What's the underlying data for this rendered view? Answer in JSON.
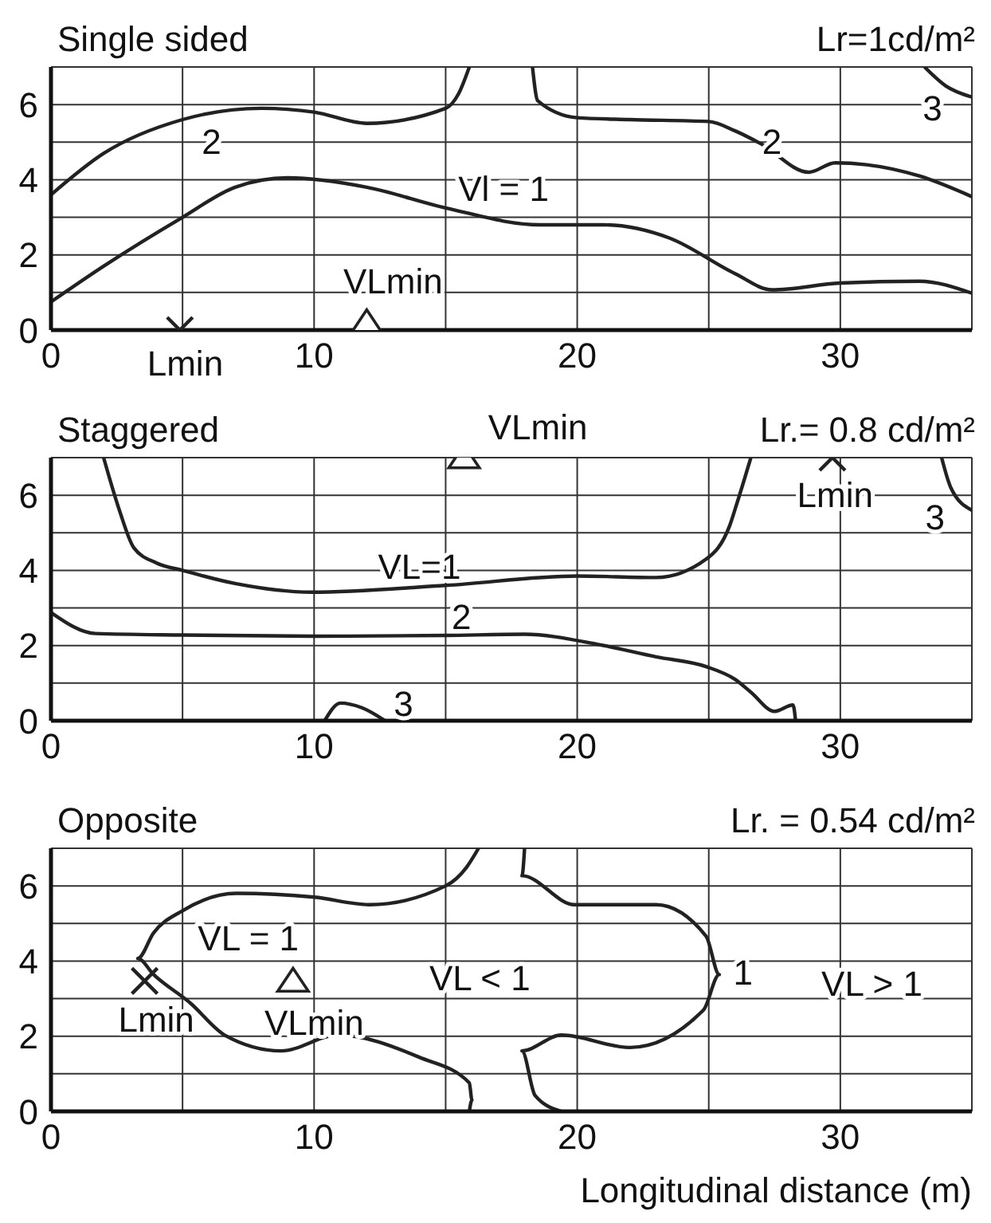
{
  "chart_data": [
    {
      "type": "line",
      "title": "Single sided",
      "subtitle": "Lr=1cd/m²",
      "xlim": [
        0,
        35
      ],
      "ylim": [
        0,
        7
      ],
      "xticks": [
        0,
        {
          "value": 5,
          "label": null
        },
        10,
        {
          "value": 15,
          "label": null
        },
        20,
        {
          "value": 25,
          "label": null
        },
        30,
        {
          "value": 35,
          "label": null
        }
      ],
      "yticks": [
        0,
        {
          "value": 1,
          "label": null
        },
        2,
        {
          "value": 3,
          "label": null
        },
        4,
        {
          "value": 5,
          "label": null
        },
        6,
        {
          "value": 7,
          "label": null
        }
      ],
      "grid": true,
      "marker": "none",
      "line_style": "solid",
      "series": [
        {
          "color": "#222222",
          "x": [
            0,
            2,
            5,
            8,
            10,
            12,
            15,
            15.5,
            15.9
          ],
          "values": [
            3.6,
            4.7,
            5.6,
            5.9,
            5.8,
            5.5,
            5.9,
            6.3,
            7
          ]
        },
        {
          "color": "#222222",
          "x": [
            18.3,
            18.5,
            20,
            22,
            25,
            26,
            27,
            28.8,
            29.8,
            31,
            33,
            35
          ],
          "values": [
            7,
            6.1,
            5.65,
            5.6,
            5.55,
            5.3,
            4.95,
            4.2,
            4.45,
            4.4,
            4.1,
            3.55
          ]
        },
        {
          "color": "#222222",
          "x": [
            33.2,
            34,
            35
          ],
          "values": [
            7,
            6.5,
            6.2
          ]
        },
        {
          "color": "#222222",
          "x": [
            0,
            2,
            5,
            7,
            9,
            12,
            15,
            18.6,
            21,
            23.5,
            26,
            27.4,
            30,
            33,
            35
          ],
          "values": [
            0.75,
            1.7,
            3.0,
            3.8,
            4.05,
            3.8,
            3.25,
            2.8,
            2.8,
            2.45,
            1.5,
            1.07,
            1.25,
            1.3,
            0.98
          ]
        },
        {
          "type": "scatter",
          "marker": "cross",
          "color": "#222222",
          "x": [
            4.9
          ],
          "values": [
            0
          ]
        },
        {
          "type": "scatter",
          "marker": "triangle",
          "color": "#222222",
          "x": [
            12
          ],
          "values": [
            0.2
          ]
        }
      ],
      "annotations": [
        "2",
        "2",
        "3",
        "Vl = 1",
        "VLmin",
        "Lmin"
      ]
    },
    {
      "type": "line",
      "title": "Staggered",
      "subtitle": "Lr.= 0.8 cd/m²",
      "xlim": [
        0,
        35
      ],
      "ylim": [
        0,
        7
      ],
      "xticks": [
        0,
        {
          "value": 5,
          "label": null
        },
        10,
        {
          "value": 15,
          "label": null
        },
        20,
        {
          "value": 25,
          "label": null
        },
        30,
        {
          "value": 35,
          "label": null
        }
      ],
      "yticks": [
        0,
        {
          "value": 1,
          "label": null
        },
        2,
        {
          "value": 3,
          "label": null
        },
        4,
        {
          "value": 5,
          "label": null
        },
        6,
        {
          "value": 7,
          "label": null
        }
      ],
      "grid": true,
      "marker": "none",
      "line_style": "solid",
      "series": [
        {
          "color": "#222222",
          "x": [
            2,
            2.6,
            3.15,
            4,
            5,
            7,
            9.9,
            15,
            20,
            23,
            24.9,
            25.8,
            26.1,
            26.6
          ],
          "values": [
            7,
            5.6,
            4.6,
            4.2,
            4,
            3.65,
            3.42,
            3.6,
            3.85,
            3.81,
            4.3,
            5.2,
            5.85,
            7
          ]
        },
        {
          "color": "#222222",
          "x": [
            0,
            1.7,
            5,
            10,
            15,
            18,
            20.8,
            23,
            24.9,
            26,
            26.6,
            27.5,
            28.2,
            28.3
          ],
          "values": [
            2.88,
            2.32,
            2.28,
            2.25,
            2.27,
            2.3,
            2.03,
            1.7,
            1.44,
            1.1,
            0.76,
            0.25,
            0.42,
            0
          ]
        },
        {
          "color": "#222222",
          "x": [
            10.4,
            11,
            11.8,
            12.7
          ],
          "values": [
            0,
            0.47,
            0.35,
            0
          ]
        },
        {
          "color": "#222222",
          "x": [
            33.85,
            34.2,
            35
          ],
          "values": [
            7,
            6.2,
            5.6
          ]
        },
        {
          "type": "scatter",
          "marker": "cross",
          "color": "#222222",
          "x": [
            29.7
          ],
          "values": [
            7
          ]
        },
        {
          "type": "scatter",
          "marker": "triangle",
          "color": "#222222",
          "x": [
            15.7
          ],
          "values": [
            7
          ]
        }
      ],
      "annotations": [
        "VL=1",
        "2",
        "3",
        "3",
        "VLmin",
        "Lmin"
      ]
    },
    {
      "type": "line",
      "title": "Opposite",
      "subtitle": "Lr. = 0.54 cd/m²",
      "xlabel": "Longitudinal distance (m)",
      "xlim": [
        0,
        35
      ],
      "ylim": [
        0,
        7
      ],
      "xticks": [
        0,
        {
          "value": 5,
          "label": null
        },
        10,
        {
          "value": 15,
          "label": null
        },
        20,
        {
          "value": 25,
          "label": null
        },
        30,
        {
          "value": 35,
          "label": null
        }
      ],
      "yticks": [
        0,
        {
          "value": 1,
          "label": null
        },
        2,
        {
          "value": 3,
          "label": null
        },
        4,
        {
          "value": 5,
          "label": null
        },
        6,
        {
          "value": 7,
          "label": null
        }
      ],
      "grid": true,
      "marker": "none",
      "line_style": "solid",
      "series": [
        {
          "color": "#222222",
          "x": [
            16.25,
            15.8,
            15,
            12.1,
            10,
            7.05,
            5,
            3.9,
            3.3,
            3.9,
            5.3,
            6.6,
            8.75,
            10.9,
            14,
            15.9,
            16,
            15.9
          ],
          "values": [
            7,
            6.5,
            6,
            5.5,
            5.7,
            5.8,
            5.34,
            4.75,
            4.07,
            3.64,
            2.88,
            2.03,
            1.61,
            2.03,
            1.44,
            0.76,
            0.3,
            0
          ]
        },
        {
          "color": "#222222",
          "x": [
            18,
            17.9,
            19.9,
            23,
            24.9,
            25.4,
            24.8,
            22,
            19.4,
            17.9,
            18.4,
            19.4
          ],
          "values": [
            7,
            6.27,
            5.5,
            5.5,
            4.66,
            3.64,
            2.7,
            1.7,
            2.03,
            1.61,
            0.42,
            0
          ]
        },
        {
          "type": "scatter",
          "marker": "cross",
          "color": "#222222",
          "x": [
            3.56
          ],
          "values": [
            3.47
          ]
        },
        {
          "type": "scatter",
          "marker": "triangle",
          "color": "#222222",
          "x": [
            9.2
          ],
          "values": [
            3.47
          ]
        }
      ],
      "annotations": [
        "VL = 1",
        "VL < 1",
        "1",
        "VL > 1",
        "Lmin",
        "VLmin"
      ]
    }
  ]
}
